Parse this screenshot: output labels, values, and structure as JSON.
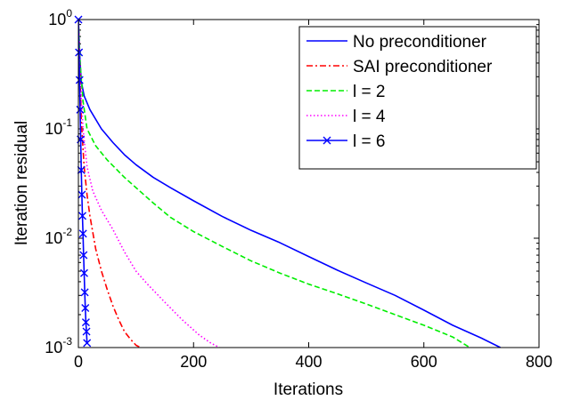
{
  "chart_data": {
    "type": "line",
    "xlabel": "Iterations",
    "ylabel": "Iteration residual",
    "xlim": [
      0,
      800
    ],
    "ylim": [
      0.001,
      1
    ],
    "yscale": "log",
    "x_ticks": [
      {
        "value": 0,
        "label": "0"
      },
      {
        "value": 200,
        "label": "200"
      },
      {
        "value": 400,
        "label": "400"
      },
      {
        "value": 600,
        "label": "600"
      },
      {
        "value": 800,
        "label": "800"
      }
    ],
    "y_ticks": [
      {
        "value": 1,
        "base": "10",
        "exp": "0"
      },
      {
        "value": 0.1,
        "base": "10",
        "exp": "-1"
      },
      {
        "value": 0.01,
        "base": "10",
        "exp": "-2"
      },
      {
        "value": 0.001,
        "base": "10",
        "exp": "-3"
      }
    ],
    "grid": false,
    "legend_position": "top-right",
    "series": [
      {
        "name": "No preconditioner",
        "color": "#0000ff",
        "dash": "solid",
        "marker": "none",
        "points": [
          [
            0,
            1
          ],
          [
            2,
            0.5
          ],
          [
            5,
            0.27
          ],
          [
            10,
            0.2
          ],
          [
            20,
            0.15
          ],
          [
            40,
            0.1
          ],
          [
            60,
            0.075
          ],
          [
            80,
            0.058
          ],
          [
            100,
            0.047
          ],
          [
            130,
            0.036
          ],
          [
            160,
            0.029
          ],
          [
            200,
            0.022
          ],
          [
            250,
            0.0158
          ],
          [
            300,
            0.0118
          ],
          [
            350,
            0.0091
          ],
          [
            400,
            0.0068
          ],
          [
            450,
            0.0051
          ],
          [
            500,
            0.0039
          ],
          [
            550,
            0.003
          ],
          [
            600,
            0.0022
          ],
          [
            650,
            0.0016
          ],
          [
            700,
            0.00122
          ],
          [
            733,
            0.001
          ]
        ]
      },
      {
        "name": "SAI preconditioner",
        "color": "#ff0000",
        "dash": "dashdot",
        "marker": "none",
        "points": [
          [
            0,
            1
          ],
          [
            2,
            0.5
          ],
          [
            5,
            0.12
          ],
          [
            10,
            0.045
          ],
          [
            15,
            0.025
          ],
          [
            20,
            0.016
          ],
          [
            30,
            0.008
          ],
          [
            40,
            0.005
          ],
          [
            50,
            0.0034
          ],
          [
            60,
            0.0024
          ],
          [
            70,
            0.0018
          ],
          [
            80,
            0.0014
          ],
          [
            90,
            0.0012
          ],
          [
            100,
            0.00105
          ],
          [
            108,
            0.001
          ]
        ]
      },
      {
        "name": "l = 2",
        "color": "#00ee00",
        "dash": "dashed",
        "marker": "none",
        "points": [
          [
            0,
            1
          ],
          [
            3,
            0.4
          ],
          [
            8,
            0.18
          ],
          [
            15,
            0.1
          ],
          [
            30,
            0.07
          ],
          [
            50,
            0.052
          ],
          [
            80,
            0.036
          ],
          [
            100,
            0.029
          ],
          [
            130,
            0.021
          ],
          [
            160,
            0.0155
          ],
          [
            200,
            0.0115
          ],
          [
            250,
            0.0084
          ],
          [
            300,
            0.0062
          ],
          [
            350,
            0.0048
          ],
          [
            400,
            0.0038
          ],
          [
            450,
            0.0031
          ],
          [
            500,
            0.0025
          ],
          [
            550,
            0.002
          ],
          [
            600,
            0.0016
          ],
          [
            650,
            0.00125
          ],
          [
            680,
            0.001
          ]
        ]
      },
      {
        "name": "l = 4",
        "color": "#ff00ff",
        "dash": "dotted",
        "marker": "none",
        "points": [
          [
            0,
            1
          ],
          [
            3,
            0.3
          ],
          [
            8,
            0.1
          ],
          [
            15,
            0.045
          ],
          [
            25,
            0.027
          ],
          [
            40,
            0.018
          ],
          [
            60,
            0.012
          ],
          [
            80,
            0.0075
          ],
          [
            100,
            0.005
          ],
          [
            120,
            0.0038
          ],
          [
            150,
            0.0026
          ],
          [
            180,
            0.0018
          ],
          [
            210,
            0.0013
          ],
          [
            230,
            0.0011
          ],
          [
            245,
            0.001
          ]
        ]
      },
      {
        "name": "l = 6",
        "color": "#0000ff",
        "dash": "solid",
        "marker": "x",
        "points": [
          [
            0,
            1
          ],
          [
            1,
            0.5
          ],
          [
            2,
            0.28
          ],
          [
            3,
            0.15
          ],
          [
            4,
            0.08
          ],
          [
            5,
            0.042
          ],
          [
            6,
            0.025
          ],
          [
            7,
            0.016
          ],
          [
            8,
            0.011
          ],
          [
            9,
            0.007
          ],
          [
            10,
            0.0048
          ],
          [
            11,
            0.0032
          ],
          [
            12,
            0.0023
          ],
          [
            13,
            0.0017
          ],
          [
            14,
            0.0014
          ],
          [
            15,
            0.0011
          ]
        ]
      }
    ]
  }
}
